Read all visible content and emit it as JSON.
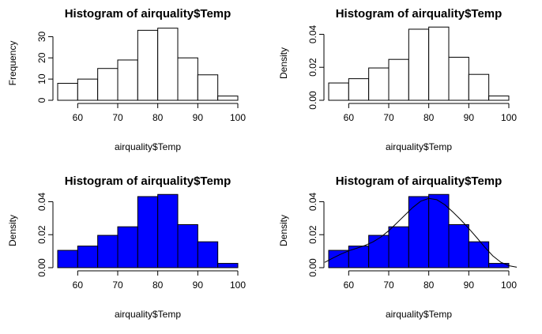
{
  "chart_data": [
    {
      "type": "bar",
      "title": "Histogram of airquality$Temp",
      "xlabel": "airquality$Temp",
      "ylabel": "Frequency",
      "bin_edges": [
        55,
        60,
        65,
        70,
        75,
        80,
        85,
        90,
        95,
        100
      ],
      "values": [
        8,
        10,
        15,
        19,
        33,
        34,
        20,
        12,
        2
      ],
      "xlim": [
        55,
        100
      ],
      "ylim": [
        0,
        35
      ],
      "xticks": [
        60,
        70,
        80,
        90,
        100
      ],
      "yticks": [
        0,
        10,
        20,
        30
      ],
      "ytick_labels": [
        "0",
        "10",
        "20",
        "30"
      ],
      "fill": "#ffffff",
      "density_curve": false
    },
    {
      "type": "bar",
      "title": "Histogram of airquality$Temp",
      "xlabel": "airquality$Temp",
      "ylabel": "Density",
      "bin_edges": [
        55,
        60,
        65,
        70,
        75,
        80,
        85,
        90,
        95,
        100
      ],
      "values": [
        0.0105,
        0.0131,
        0.0196,
        0.0248,
        0.0431,
        0.0444,
        0.0261,
        0.0157,
        0.0026
      ],
      "xlim": [
        55,
        100
      ],
      "ylim": [
        0,
        0.045
      ],
      "xticks": [
        60,
        70,
        80,
        90,
        100
      ],
      "yticks": [
        0,
        0.02,
        0.04
      ],
      "ytick_labels": [
        "0.00",
        "0.02",
        "0.04"
      ],
      "fill": "#ffffff",
      "density_curve": false
    },
    {
      "type": "bar",
      "title": "Histogram of airquality$Temp",
      "xlabel": "airquality$Temp",
      "ylabel": "Density",
      "bin_edges": [
        55,
        60,
        65,
        70,
        75,
        80,
        85,
        90,
        95,
        100
      ],
      "values": [
        0.0105,
        0.0131,
        0.0196,
        0.0248,
        0.0431,
        0.0444,
        0.0261,
        0.0157,
        0.0026
      ],
      "xlim": [
        55,
        100
      ],
      "ylim": [
        0,
        0.045
      ],
      "xticks": [
        60,
        70,
        80,
        90,
        100
      ],
      "yticks": [
        0,
        0.02,
        0.04
      ],
      "ytick_labels": [
        "0.00",
        "0.02",
        "0.04"
      ],
      "fill": "#0000ff",
      "density_curve": false
    },
    {
      "type": "bar",
      "title": "Histogram of airquality$Temp",
      "xlabel": "airquality$Temp",
      "ylabel": "Density",
      "bin_edges": [
        55,
        60,
        65,
        70,
        75,
        80,
        85,
        90,
        95,
        100
      ],
      "values": [
        0.0105,
        0.0131,
        0.0196,
        0.0248,
        0.0431,
        0.0444,
        0.0261,
        0.0157,
        0.0026
      ],
      "xlim": [
        55,
        100
      ],
      "ylim": [
        0,
        0.045
      ],
      "xticks": [
        60,
        70,
        80,
        90,
        100
      ],
      "yticks": [
        0,
        0.02,
        0.04
      ],
      "ytick_labels": [
        "0.00",
        "0.02",
        "0.04"
      ],
      "fill": "#0000ff",
      "density_curve": true,
      "curve_x": [
        54,
        56,
        58,
        60,
        62,
        64,
        66,
        68,
        70,
        72,
        74,
        76,
        78,
        80,
        82,
        84,
        86,
        88,
        90,
        92,
        94,
        96,
        98,
        100,
        102
      ],
      "curve_y": [
        0.0032,
        0.0058,
        0.0082,
        0.0102,
        0.0118,
        0.0134,
        0.0155,
        0.0185,
        0.0224,
        0.027,
        0.0318,
        0.0365,
        0.0403,
        0.042,
        0.0412,
        0.0382,
        0.0338,
        0.029,
        0.0238,
        0.0182,
        0.0124,
        0.0072,
        0.0033,
        0.0012,
        0.0003
      ]
    }
  ]
}
